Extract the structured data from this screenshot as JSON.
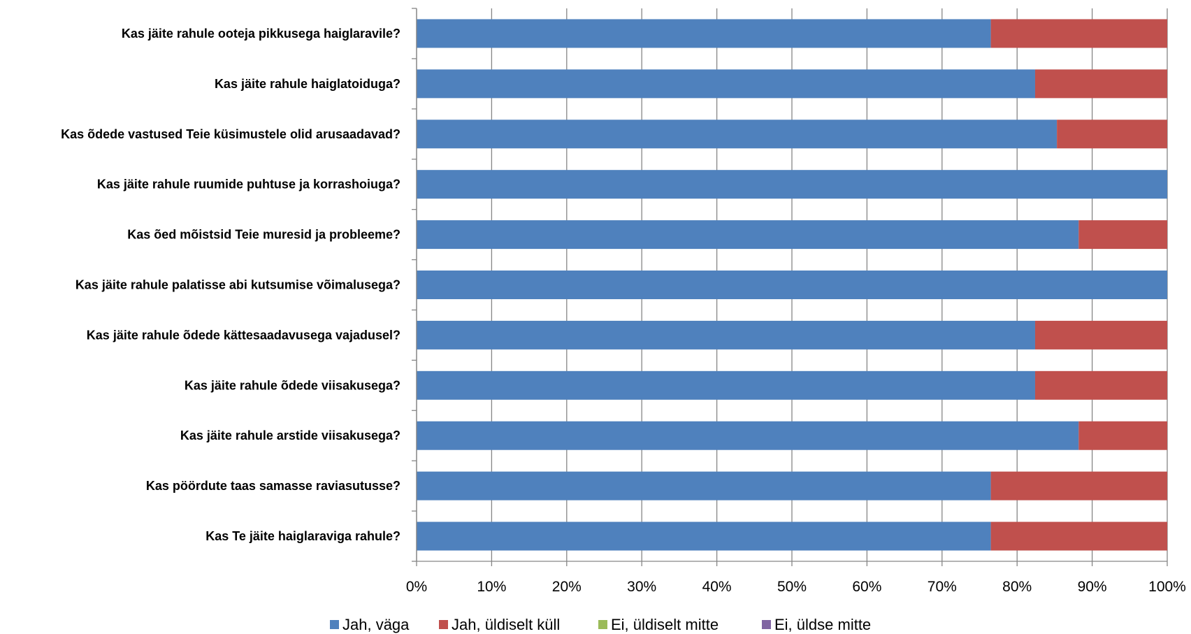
{
  "chart_data": {
    "type": "bar",
    "orientation": "horizontal",
    "stacked": "percent",
    "title": "",
    "xlabel": "",
    "ylabel": "",
    "xlim": [
      0,
      100
    ],
    "x_ticks": [
      "0%",
      "10%",
      "20%",
      "30%",
      "40%",
      "50%",
      "60%",
      "70%",
      "80%",
      "90%",
      "100%"
    ],
    "grid": "vertical",
    "legend_position": "bottom",
    "categories": [
      "Kas jäite rahule ooteja pikkusega haiglaravile?",
      "Kas jäite rahule haiglatoiduga?",
      "Kas õdede vastused Teie küsimustele olid arusaadavad?",
      "Kas jäite rahule ruumide puhtuse ja korrashoiuga?",
      "Kas õed mõistsid Teie muresid ja probleeme?",
      "Kas jäite rahule palatisse abi kutsumise võimalusega?",
      "Kas jäite rahule õdede kättesaadavusega vajadusel?",
      "Kas jäite rahule õdede viisakusega?",
      "Kas jäite rahule arstide viisakusega?",
      "Kas pöördute taas samasse raviasutusse?",
      "Kas Te jäite haiglaraviga rahule?"
    ],
    "series": [
      {
        "name": "Jah, väga",
        "color": "#4F81BD",
        "values": [
          76.5,
          82.4,
          85.3,
          100,
          88.2,
          100,
          82.4,
          82.4,
          88.2,
          76.5,
          76.5
        ]
      },
      {
        "name": "Jah, üldiselt küll",
        "color": "#C0504D",
        "values": [
          23.5,
          17.6,
          14.7,
          0,
          11.8,
          0,
          17.6,
          17.6,
          11.8,
          23.5,
          23.5
        ]
      },
      {
        "name": "Ei, üldiselt mitte",
        "color": "#9BBB59",
        "values": [
          0,
          0,
          0,
          0,
          0,
          0,
          0,
          0,
          0,
          0,
          0
        ]
      },
      {
        "name": "Ei, üldse mitte",
        "color": "#8064A2",
        "values": [
          0,
          0,
          0,
          0,
          0,
          0,
          0,
          0,
          0,
          0,
          0
        ]
      }
    ]
  }
}
